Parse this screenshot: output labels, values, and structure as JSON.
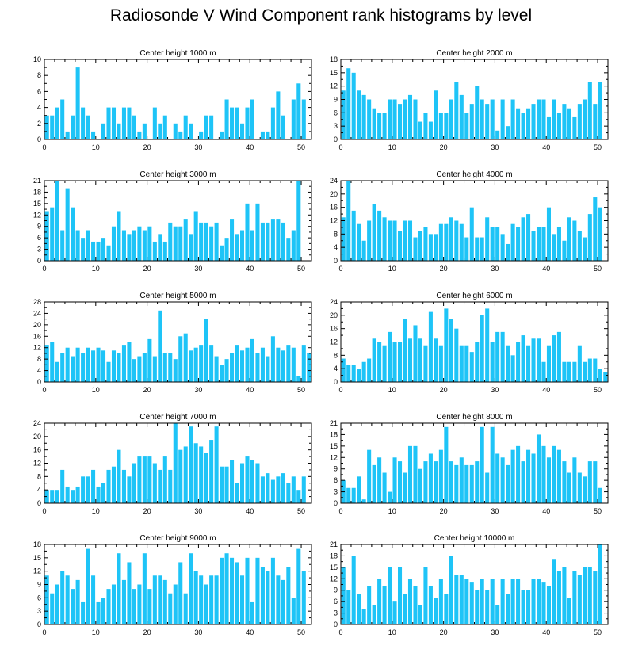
{
  "title": "Radiosonde V Wind Component rank histograms by level",
  "bar_color": "#1ec4f7",
  "chart_data": [
    {
      "type": "bar",
      "title": "Center height 1000 m",
      "xlim": [
        0,
        52
      ],
      "ylim": [
        0,
        10
      ],
      "xticks": [
        0,
        10,
        20,
        30,
        40,
        50
      ],
      "yticks": [
        0,
        2,
        4,
        6,
        8,
        10
      ],
      "values": [
        3,
        3,
        4,
        5,
        1,
        3,
        9,
        4,
        3,
        1,
        0,
        2,
        4,
        4,
        2,
        4,
        4,
        3,
        1,
        2,
        0,
        4,
        2,
        3,
        0,
        2,
        1,
        3,
        2,
        0,
        1,
        3,
        3,
        0,
        1,
        5,
        4,
        4,
        2,
        4,
        5,
        0,
        1,
        1,
        4,
        6,
        3,
        0,
        5,
        7,
        5
      ]
    },
    {
      "type": "bar",
      "title": "Center height 2000 m",
      "xlim": [
        0,
        52
      ],
      "ylim": [
        0,
        18
      ],
      "xticks": [
        0,
        10,
        20,
        30,
        40,
        50
      ],
      "yticks": [
        0,
        3,
        6,
        9,
        12,
        15,
        18
      ],
      "values": [
        11,
        16,
        15,
        11,
        10,
        9,
        7,
        6,
        6,
        9,
        9,
        8,
        9,
        10,
        9,
        4,
        6,
        4,
        11,
        6,
        6,
        9,
        13,
        10,
        6,
        8,
        12,
        9,
        8,
        9,
        2,
        9,
        3,
        9,
        7,
        6,
        7,
        8,
        9,
        9,
        5,
        9,
        6,
        8,
        7,
        5,
        8,
        9,
        13,
        8,
        13
      ]
    },
    {
      "type": "bar",
      "title": "Center height 3000 m",
      "xlim": [
        0,
        52
      ],
      "ylim": [
        0,
        21
      ],
      "xticks": [
        0,
        10,
        20,
        30,
        40,
        50
      ],
      "yticks": [
        0,
        3,
        6,
        9,
        12,
        15,
        18,
        21
      ],
      "values": [
        13,
        14,
        21,
        8,
        19,
        14,
        8,
        6,
        8,
        5,
        5,
        6,
        4,
        9,
        13,
        8,
        7,
        8,
        9,
        8,
        9,
        5,
        7,
        5,
        10,
        9,
        9,
        11,
        7,
        13,
        10,
        10,
        9,
        10,
        4,
        6,
        11,
        7,
        8,
        15,
        8,
        15,
        10,
        10,
        11,
        11,
        10,
        6,
        8,
        21
      ]
    },
    {
      "type": "bar",
      "title": "Center height 4000 m",
      "xlim": [
        0,
        52
      ],
      "ylim": [
        0,
        24
      ],
      "xticks": [
        0,
        10,
        20,
        30,
        40,
        50
      ],
      "yticks": [
        0,
        4,
        8,
        12,
        16,
        20,
        24
      ],
      "values": [
        13,
        24,
        15,
        11,
        6,
        12,
        17,
        15,
        13,
        12,
        12,
        9,
        12,
        12,
        7,
        9,
        10,
        8,
        8,
        11,
        11,
        13,
        12,
        11,
        7,
        16,
        7,
        7,
        13,
        10,
        10,
        8,
        5,
        11,
        10,
        13,
        14,
        9,
        10,
        10,
        16,
        8,
        10,
        6,
        13,
        12,
        9,
        7,
        14,
        19,
        16
      ]
    },
    {
      "type": "bar",
      "title": "Center height 5000 m",
      "xlim": [
        0,
        52
      ],
      "ylim": [
        0,
        28
      ],
      "xticks": [
        0,
        10,
        20,
        30,
        40,
        50
      ],
      "yticks": [
        0,
        4,
        8,
        12,
        16,
        20,
        24,
        28
      ],
      "values": [
        13,
        14,
        7,
        10,
        12,
        9,
        12,
        10,
        12,
        11,
        12,
        11,
        7,
        11,
        10,
        13,
        14,
        8,
        9,
        10,
        15,
        9,
        25,
        10,
        10,
        8,
        16,
        17,
        11,
        12,
        13,
        22,
        13,
        9,
        6,
        8,
        10,
        13,
        11,
        12,
        15,
        10,
        12,
        9,
        16,
        12,
        11,
        13,
        12,
        2,
        13,
        10
      ]
    },
    {
      "type": "bar",
      "title": "Center height 6000 m",
      "xlim": [
        0,
        52
      ],
      "ylim": [
        0,
        24
      ],
      "xticks": [
        0,
        10,
        20,
        30,
        40,
        50
      ],
      "yticks": [
        0,
        4,
        8,
        12,
        16,
        20,
        24
      ],
      "values": [
        7,
        5,
        5,
        4,
        6,
        7,
        13,
        12,
        11,
        15,
        12,
        12,
        19,
        13,
        17,
        13,
        11,
        21,
        13,
        11,
        22,
        19,
        16,
        11,
        11,
        9,
        12,
        20,
        22,
        12,
        15,
        15,
        11,
        8,
        12,
        14,
        11,
        13,
        13,
        6,
        11,
        14,
        15,
        6,
        6,
        6,
        11,
        6,
        7,
        7,
        4,
        3
      ]
    },
    {
      "type": "bar",
      "title": "Center height 7000 m",
      "xlim": [
        0,
        52
      ],
      "ylim": [
        0,
        24
      ],
      "xticks": [
        0,
        10,
        20,
        30,
        40,
        50
      ],
      "yticks": [
        0,
        4,
        8,
        12,
        16,
        20,
        24
      ],
      "values": [
        4,
        4,
        4,
        10,
        5,
        4,
        5,
        8,
        8,
        10,
        5,
        6,
        10,
        11,
        16,
        10,
        8,
        12,
        14,
        14,
        14,
        12,
        10,
        14,
        10,
        24,
        16,
        17,
        23,
        18,
        17,
        15,
        19,
        23,
        11,
        11,
        13,
        6,
        12,
        14,
        13,
        12,
        8,
        9,
        7,
        8,
        9,
        6,
        8,
        4,
        8
      ]
    },
    {
      "type": "bar",
      "title": "Center height 8000 m",
      "xlim": [
        0,
        52
      ],
      "ylim": [
        0,
        21
      ],
      "xticks": [
        0,
        10,
        20,
        30,
        40,
        50
      ],
      "yticks": [
        0,
        3,
        6,
        9,
        12,
        15,
        18,
        21
      ],
      "values": [
        6,
        4,
        4,
        7,
        1,
        14,
        10,
        12,
        8,
        3,
        12,
        11,
        8,
        15,
        15,
        9,
        11,
        13,
        11,
        14,
        20,
        11,
        10,
        12,
        10,
        10,
        11,
        20,
        8,
        20,
        13,
        12,
        10,
        14,
        15,
        11,
        14,
        13,
        18,
        15,
        12,
        15,
        14,
        11,
        8,
        12,
        8,
        7,
        11,
        11,
        4
      ]
    },
    {
      "type": "bar",
      "title": "Center height 9000 m",
      "xlim": [
        0,
        52
      ],
      "ylim": [
        0,
        18
      ],
      "xticks": [
        0,
        10,
        20,
        30,
        40,
        50
      ],
      "yticks": [
        0,
        3,
        6,
        9,
        12,
        15,
        18
      ],
      "values": [
        11,
        7,
        9,
        12,
        11,
        8,
        10,
        5,
        17,
        11,
        5,
        6,
        8,
        9,
        16,
        10,
        14,
        8,
        9,
        16,
        8,
        11,
        11,
        10,
        7,
        9,
        14,
        7,
        16,
        12,
        11,
        9,
        11,
        11,
        15,
        16,
        15,
        14,
        11,
        15,
        5,
        15,
        13,
        12,
        15,
        11,
        10,
        13,
        6,
        17,
        12
      ]
    },
    {
      "type": "bar",
      "title": "Center height 10000 m",
      "xlim": [
        0,
        52
      ],
      "ylim": [
        0,
        21
      ],
      "xticks": [
        0,
        10,
        20,
        30,
        40,
        50
      ],
      "yticks": [
        0,
        3,
        6,
        9,
        12,
        15,
        18,
        21
      ],
      "values": [
        15,
        9,
        18,
        8,
        4,
        10,
        5,
        12,
        10,
        15,
        6,
        15,
        8,
        12,
        10,
        5,
        15,
        10,
        7,
        12,
        8,
        18,
        13,
        13,
        12,
        11,
        9,
        12,
        9,
        12,
        5,
        12,
        8,
        12,
        12,
        9,
        9,
        12,
        12,
        11,
        10,
        17,
        14,
        15,
        7,
        14,
        13,
        15,
        15,
        14,
        21
      ]
    }
  ]
}
